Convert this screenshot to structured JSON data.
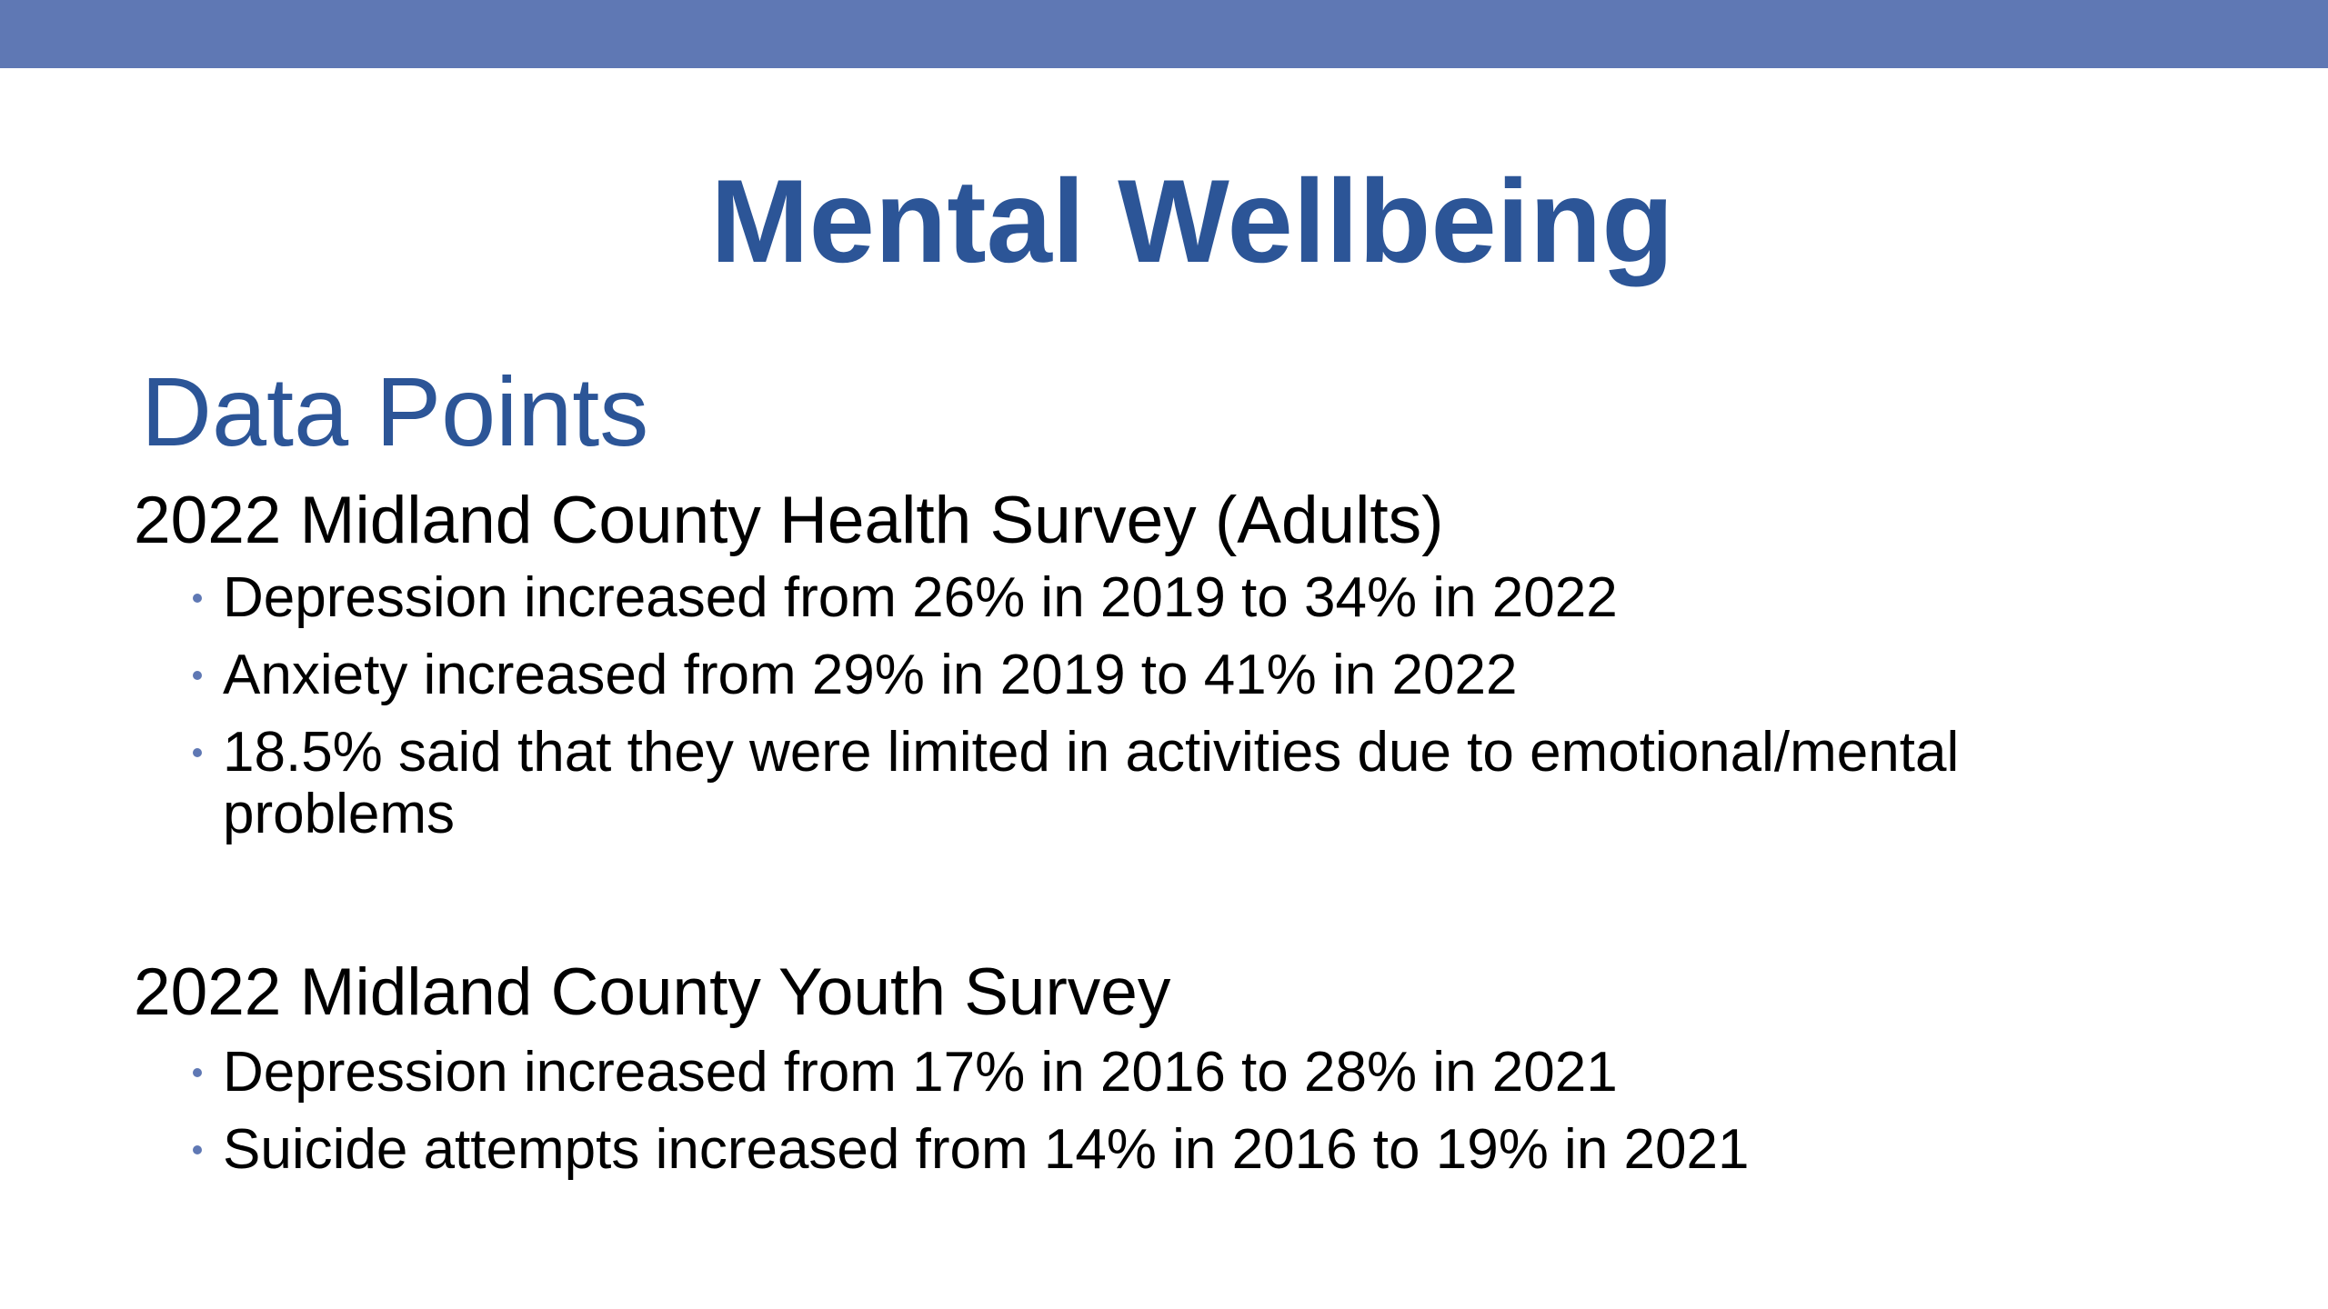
{
  "slide": {
    "title": "Mental Wellbeing",
    "section_title": "Data Points",
    "accent_color": "#5f78b4",
    "title_color": "#2c5597",
    "groups": [
      {
        "heading": "2022 Midland County Health Survey (Adults)",
        "bullets": [
          "Depression increased from 26% in 2019 to 34% in 2022",
          "Anxiety increased from 29% in 2019 to 41% in 2022",
          "18.5% said that they were limited in activities due to emotional/mental problems"
        ]
      },
      {
        "heading": "2022 Midland County Youth Survey",
        "bullets": [
          "Depression increased from 17% in 2016 to 28% in 2021",
          "Suicide attempts increased from 14% in 2016 to 19% in 2021"
        ]
      }
    ]
  }
}
